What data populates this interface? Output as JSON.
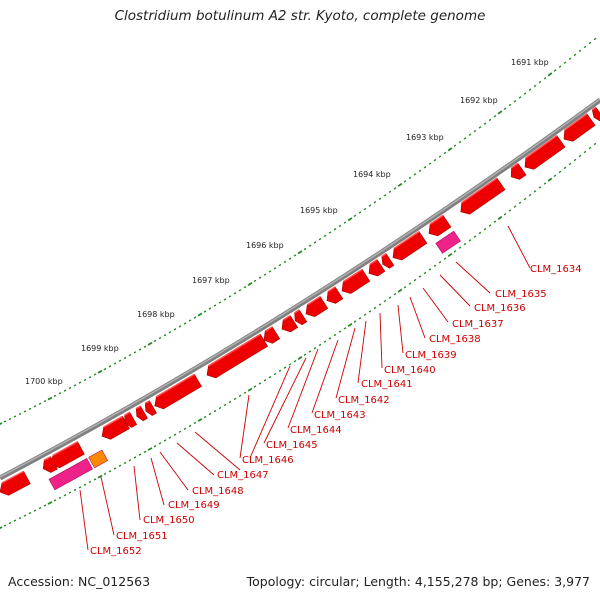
{
  "title": "Clostridium botulinum A2 str. Kyoto, complete genome",
  "footer": {
    "accession": "Accession: NC_012563",
    "stats": "Topology: circular; Length: 4,155,278 bp; Genes: 3,977"
  },
  "colors": {
    "gene": "#ee0000",
    "gene_top": "#ff4d4d",
    "gene_dark": "#a80000",
    "pink": "#ee2288",
    "orange": "#ff8800",
    "backbone": "#808080",
    "tick": "#228822",
    "label": "#cc0000"
  },
  "scale_labels": [
    "1691 kbp",
    "1692 kbp",
    "1693 kbp",
    "1694 kbp",
    "1695 kbp",
    "1696 kbp",
    "1697 kbp",
    "1698 kbp",
    "1699 kbp",
    "1700 kbp"
  ],
  "gene_labels": [
    "CLM_1634",
    "CLM_1635",
    "CLM_1636",
    "CLM_1637",
    "CLM_1638",
    "CLM_1639",
    "CLM_1640",
    "CLM_1641",
    "CLM_1642",
    "CLM_1643",
    "CLM_1644",
    "CLM_1645",
    "CLM_1646",
    "CLM_1647",
    "CLM_1648",
    "CLM_1649",
    "CLM_1650",
    "CLM_1651",
    "CLM_1652"
  ]
}
